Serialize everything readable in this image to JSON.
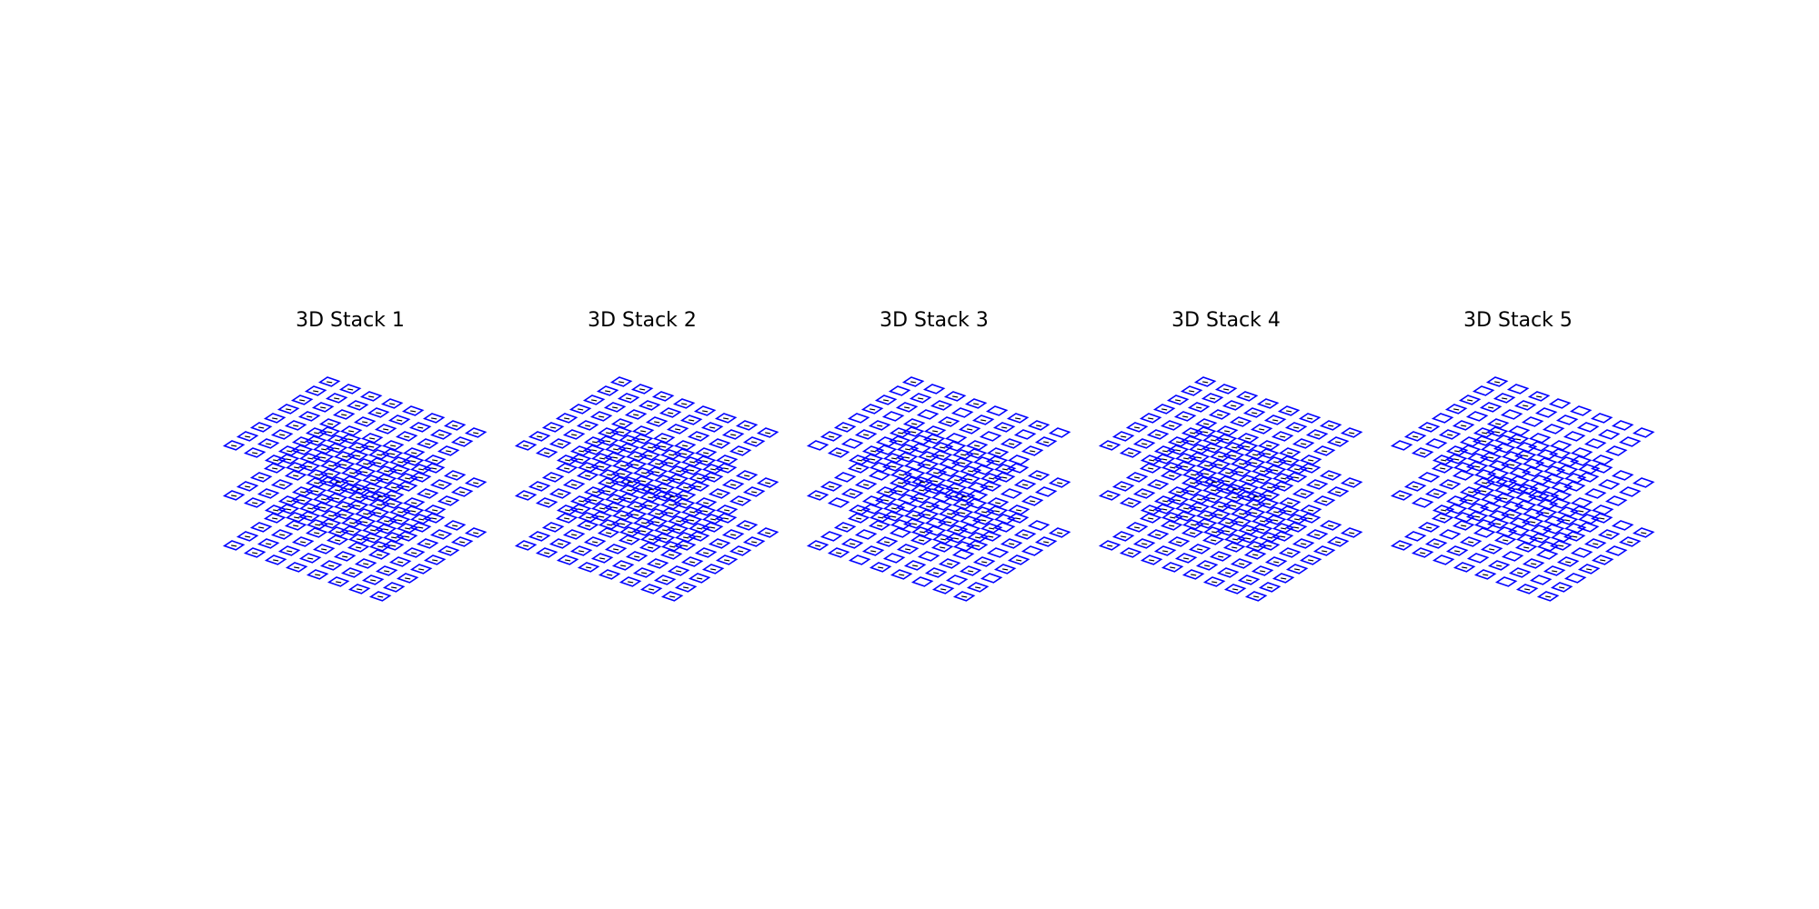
{
  "figure": {
    "stroke_color": "#0000ff",
    "label_color": "#000000",
    "layers_per_stack": 3,
    "grid": [
      8,
      8
    ]
  },
  "stacks": [
    {
      "title": "3D Stack 1",
      "labeled": "all"
    },
    {
      "title": "3D Stack 2",
      "labeled": "all"
    },
    {
      "title": "3D Stack 3",
      "labeled": "partial"
    },
    {
      "title": "3D Stack 4",
      "labeled": "all"
    },
    {
      "title": "3D Stack 5",
      "labeled": "partial"
    }
  ]
}
